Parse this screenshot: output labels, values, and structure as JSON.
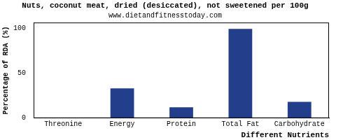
{
  "chart_data": {
    "type": "bar",
    "title": "Nuts, coconut meat, dried (desiccated), not sweetened per 100g",
    "subtitle": "www.dietandfitnesstoday.com",
    "x_label": "Different Nutrients",
    "y_label": "Percentage of RDA (%)",
    "categories": [
      "Threonine",
      "Energy",
      "Protein",
      "Total Fat",
      "Carbohydrate"
    ],
    "values": [
      0,
      33,
      12,
      99,
      18
    ],
    "color": "#233f8c",
    "ylim": [
      0,
      106
    ],
    "yticks": [
      0,
      50,
      100
    ],
    "grid": false
  }
}
